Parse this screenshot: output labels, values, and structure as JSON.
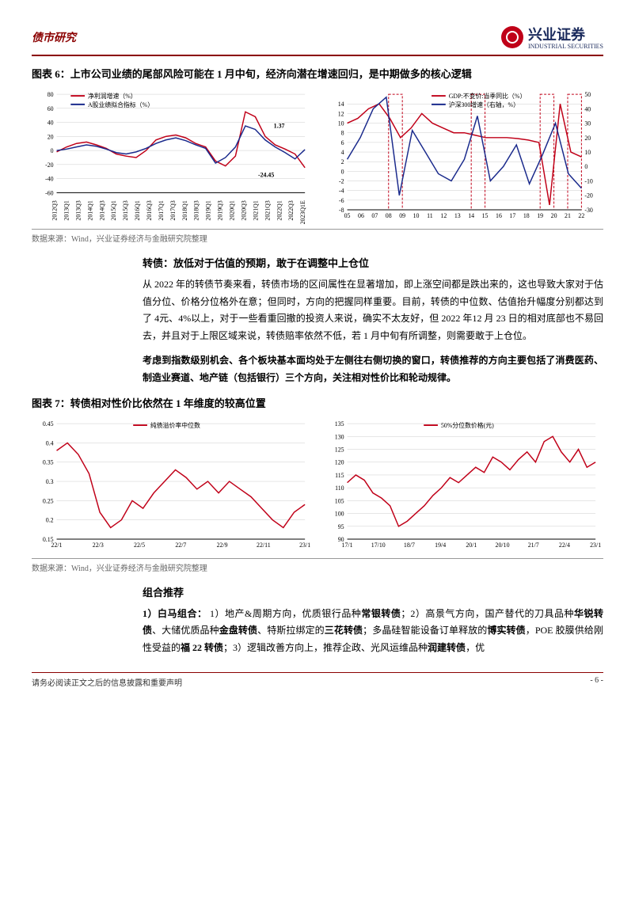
{
  "header": {
    "category": "债市研究",
    "company_cn": "兴业证券",
    "company_en": "INDUSTRIAL SECURITIES"
  },
  "figure6": {
    "title": "图表 6：上市公司业绩的尾部风险可能在 1 月中旬，经济向潜在增速回归，是中期做多的核心逻辑",
    "left_chart": {
      "type": "line",
      "legend": [
        {
          "label": "净利润增速（%）",
          "color": "#c00018"
        },
        {
          "label": "A股业绩拟合指标（%）",
          "color": "#1a2a8c"
        }
      ],
      "ylim": [
        -60,
        80
      ],
      "ytick_step": 20,
      "xlabels": [
        "2012Q3",
        "2013Q1",
        "2013Q3",
        "2014Q1",
        "2014Q3",
        "2015Q1",
        "2015Q3",
        "2016Q1",
        "2016Q3",
        "2017Q1",
        "2017Q3",
        "2018Q1",
        "2018Q3",
        "2019Q1",
        "2019Q3",
        "2020Q1",
        "2020Q3",
        "2021Q1",
        "2021Q3",
        "2022Q1",
        "2022Q3",
        "2023Q1E"
      ],
      "annotation_high": "1.37",
      "annotation_low": "-24.45",
      "series_a": [
        -2,
        5,
        10,
        12,
        8,
        3,
        -5,
        -8,
        -10,
        0,
        15,
        20,
        22,
        18,
        10,
        5,
        -15,
        -22,
        -8,
        55,
        48,
        20,
        8,
        2,
        -5,
        -24.45
      ],
      "series_b": [
        0,
        2,
        5,
        8,
        6,
        2,
        -3,
        -5,
        -2,
        3,
        10,
        15,
        18,
        14,
        8,
        3,
        -18,
        -10,
        5,
        35,
        30,
        15,
        5,
        -3,
        -12,
        1.37
      ],
      "background_color": "#ffffff"
    },
    "right_chart": {
      "type": "line",
      "legend": [
        {
          "label": "GDP:不变价:当季同比（%）",
          "color": "#c00018"
        },
        {
          "label": "沪深300增速（右轴，%）",
          "color": "#1a2a8c"
        }
      ],
      "ylim_left": [
        -8,
        16
      ],
      "ytick_left": [
        -8,
        -6,
        -4,
        -2,
        0,
        2,
        4,
        6,
        8,
        10,
        12,
        14
      ],
      "ylim_right": [
        -30,
        50
      ],
      "ytick_right": [
        -30,
        -20,
        -10,
        0,
        10,
        20,
        30,
        40,
        50
      ],
      "xlabels": [
        "05",
        "06",
        "07",
        "08",
        "09",
        "10",
        "11",
        "12",
        "13",
        "14",
        "15",
        "16",
        "17",
        "18",
        "19",
        "20",
        "21",
        "22"
      ],
      "highlight_boxes": [
        [
          3,
          4
        ],
        [
          9,
          10
        ],
        [
          14,
          15
        ],
        [
          16,
          17
        ]
      ],
      "highlight_color": "#c00018",
      "series_gdp": [
        10,
        11,
        13,
        14,
        11,
        7,
        9,
        12,
        10,
        9,
        8,
        8,
        7.5,
        7,
        7,
        7,
        6.8,
        6.5,
        6,
        -7,
        14,
        4,
        3
      ],
      "series_csi": [
        5,
        20,
        40,
        48,
        -20,
        25,
        10,
        -5,
        -10,
        5,
        35,
        -10,
        0,
        15,
        -12,
        8,
        30,
        -5,
        -15
      ],
      "background_color": "#ffffff"
    },
    "source": "数据来源：Wind，兴业证券经济与金融研究院整理"
  },
  "section_convert": {
    "heading": "转债：放低对于估值的预期，敢于在调整中上仓位",
    "para1": "从 2022 年的转债节奏来看，转债市场的区间属性在显著增加，即上涨空间都是跌出来的，这也导致大家对于估值分位、价格分位格外在意；但同时，方向的把握同样重要。目前，转债的中位数、估值抬升幅度分别都达到了 4元、4%以上，对于一些看重回撤的投资人来说，确实不太友好，但 2022 年12 月 23 日的相对底部也不易回去，并且对于上限区域来说，转债赔率依然不低，若 1 月中旬有所调整，则需要敢于上仓位。",
    "para2": "考虑到指数级别机会、各个板块基本面均处于左侧往右侧切换的窗口，转债推荐的方向主要包括了消费医药、制造业赛道、地产链（包括银行）三个方向，关注相对性价比和轮动规律。"
  },
  "figure7": {
    "title": "图表 7：转债相对性价比依然在 1 年维度的较高位置",
    "left_chart": {
      "type": "line",
      "legend": [
        {
          "label": "纯债溢价率中位数",
          "color": "#c00018"
        }
      ],
      "ylim": [
        0.15,
        0.45
      ],
      "yticks": [
        0.15,
        0.2,
        0.25,
        0.3,
        0.35,
        0.4,
        0.45
      ],
      "xlabels": [
        "22/1",
        "22/3",
        "22/5",
        "22/7",
        "22/9",
        "22/11",
        "23/1"
      ],
      "series": [
        0.38,
        0.4,
        0.37,
        0.32,
        0.22,
        0.18,
        0.2,
        0.25,
        0.23,
        0.27,
        0.3,
        0.33,
        0.31,
        0.28,
        0.3,
        0.27,
        0.3,
        0.28,
        0.26,
        0.23,
        0.2,
        0.18,
        0.22,
        0.24
      ],
      "background_color": "#ffffff"
    },
    "right_chart": {
      "type": "line",
      "legend": [
        {
          "label": "50%分位数价格(元)",
          "color": "#c00018"
        }
      ],
      "ylim": [
        90,
        135
      ],
      "yticks": [
        90,
        95,
        100,
        105,
        110,
        115,
        120,
        125,
        130,
        135
      ],
      "xlabels": [
        "17/1",
        "17/10",
        "18/7",
        "19/4",
        "20/1",
        "20/10",
        "21/7",
        "22/4",
        "23/1"
      ],
      "series": [
        112,
        115,
        113,
        108,
        106,
        103,
        95,
        97,
        100,
        103,
        107,
        110,
        114,
        112,
        115,
        118,
        116,
        122,
        120,
        117,
        121,
        124,
        120,
        128,
        130,
        124,
        120,
        125,
        118,
        120
      ],
      "background_color": "#ffffff"
    },
    "source": "数据来源：Wind，兴业证券经济与金融研究院整理"
  },
  "section_combo": {
    "heading": "组合推荐",
    "item_label": "1）白马组合：",
    "item_text": "1）地产&周期方向，优质银行品种<b>常银转债</b>；2）高景气方向，国产替代的刀具品种<b>华锐转债</b>、大储优质品种<b>金盘转债</b>、特斯拉绑定的<b>三花转债</b>；多晶硅智能设备订单释放的<b>博实转债</b>，POE 胶膜供给刚性受益的<b>福 22 转债</b>；3）逻辑改善方向上，推荐企政、光风运维品种<b>润建转债</b>，优"
  },
  "footer": {
    "disclaimer": "请务必阅读正文之后的信息披露和重要声明",
    "page": "- 6 -"
  },
  "colors": {
    "brand_red": "#8b0000",
    "logo_red": "#c00018",
    "navy": "#1a2a8c",
    "text_black": "#000000",
    "grid": "#cccccc"
  }
}
